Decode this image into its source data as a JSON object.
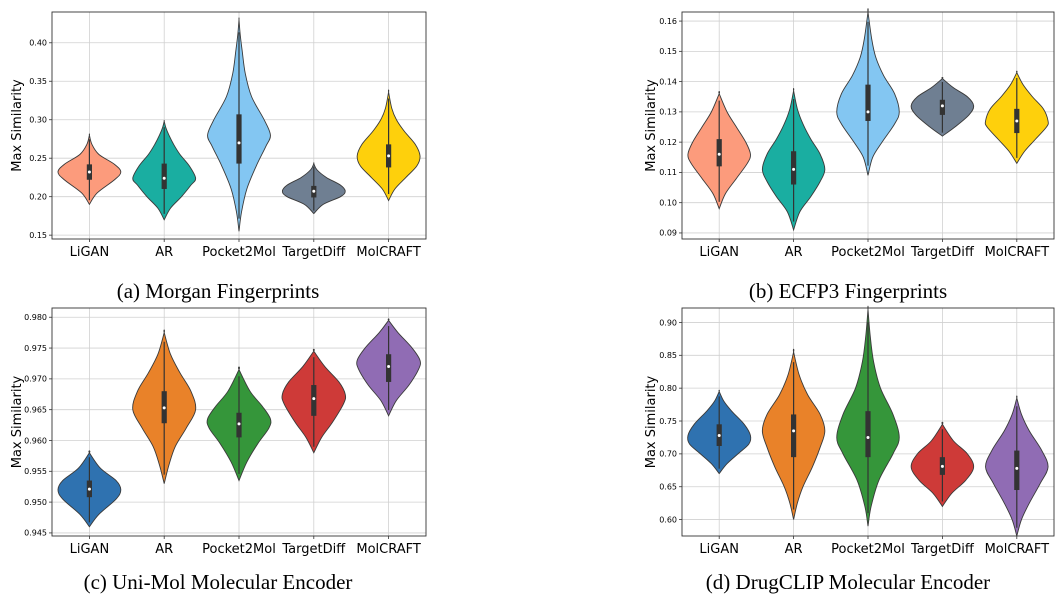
{
  "chart_data": [
    {
      "type": "violin",
      "caption": "(a) Morgan Fingerprints",
      "ylabel": "Max Similarity",
      "ylim": [
        0.145,
        0.44
      ],
      "yticks": [
        0.15,
        0.2,
        0.25,
        0.3,
        0.35,
        0.4
      ],
      "ytick_labels": [
        "0.15",
        "0.20",
        "0.25",
        "0.30",
        "0.35",
        "0.40"
      ],
      "grid": true,
      "categories": [
        "LiGAN",
        "AR",
        "Pocket2Mol",
        "TargetDiff",
        "MolCRAFT"
      ],
      "colors": [
        "#fc9b7c",
        "#1aaea1",
        "#83c6f2",
        "#6f7f92",
        "#fed00c"
      ],
      "series": [
        {
          "min": 0.19,
          "max": 0.28,
          "q1": 0.222,
          "median": 0.232,
          "q3": 0.242,
          "spread": [
            [
              0.19,
              0.0
            ],
            [
              0.205,
              0.25
            ],
            [
              0.222,
              0.8
            ],
            [
              0.232,
              1.0
            ],
            [
              0.242,
              0.8
            ],
            [
              0.255,
              0.3
            ],
            [
              0.268,
              0.08
            ],
            [
              0.28,
              0.0
            ]
          ]
        },
        {
          "min": 0.17,
          "max": 0.298,
          "q1": 0.21,
          "median": 0.224,
          "q3": 0.243,
          "spread": [
            [
              0.17,
              0.0
            ],
            [
              0.185,
              0.2
            ],
            [
              0.2,
              0.55
            ],
            [
              0.215,
              0.85
            ],
            [
              0.224,
              1.0
            ],
            [
              0.24,
              0.8
            ],
            [
              0.255,
              0.5
            ],
            [
              0.268,
              0.3
            ],
            [
              0.28,
              0.15
            ],
            [
              0.29,
              0.05
            ],
            [
              0.298,
              0.0
            ]
          ]
        },
        {
          "min": 0.155,
          "max": 0.43,
          "q1": 0.243,
          "median": 0.27,
          "q3": 0.307,
          "spread": [
            [
              0.155,
              0.0
            ],
            [
              0.18,
              0.08
            ],
            [
              0.21,
              0.25
            ],
            [
              0.24,
              0.55
            ],
            [
              0.265,
              0.85
            ],
            [
              0.28,
              1.0
            ],
            [
              0.3,
              0.8
            ],
            [
              0.33,
              0.4
            ],
            [
              0.36,
              0.2
            ],
            [
              0.39,
              0.1
            ],
            [
              0.41,
              0.04
            ],
            [
              0.43,
              0.0
            ]
          ]
        },
        {
          "min": 0.178,
          "max": 0.243,
          "q1": 0.199,
          "median": 0.207,
          "q3": 0.214,
          "spread": [
            [
              0.178,
              0.0
            ],
            [
              0.19,
              0.3
            ],
            [
              0.2,
              0.85
            ],
            [
              0.207,
              1.0
            ],
            [
              0.215,
              0.85
            ],
            [
              0.225,
              0.4
            ],
            [
              0.235,
              0.1
            ],
            [
              0.243,
              0.0
            ]
          ]
        },
        {
          "min": 0.195,
          "max": 0.336,
          "q1": 0.238,
          "median": 0.253,
          "q3": 0.268,
          "spread": [
            [
              0.195,
              0.0
            ],
            [
              0.21,
              0.2
            ],
            [
              0.225,
              0.55
            ],
            [
              0.24,
              0.9
            ],
            [
              0.253,
              1.0
            ],
            [
              0.268,
              0.85
            ],
            [
              0.285,
              0.5
            ],
            [
              0.3,
              0.25
            ],
            [
              0.315,
              0.1
            ],
            [
              0.336,
              0.0
            ]
          ]
        }
      ]
    },
    {
      "type": "violin",
      "caption": "(b) ECFP3 Fingerprints",
      "ylabel": "Max Similarity",
      "ylim": [
        0.088,
        0.163
      ],
      "yticks": [
        0.09,
        0.1,
        0.11,
        0.12,
        0.13,
        0.14,
        0.15,
        0.16
      ],
      "ytick_labels": [
        "0.09",
        "0.10",
        "0.11",
        "0.12",
        "0.13",
        "0.14",
        "0.15",
        "0.16"
      ],
      "grid": true,
      "categories": [
        "LiGAN",
        "AR",
        "Pocket2Mol",
        "TargetDiff",
        "MolCRAFT"
      ],
      "colors": [
        "#fc9b7c",
        "#1aaea1",
        "#83c6f2",
        "#6f7f92",
        "#fed00c"
      ],
      "series": [
        {
          "min": 0.098,
          "max": 0.136,
          "q1": 0.112,
          "median": 0.116,
          "q3": 0.121,
          "spread": [
            [
              0.098,
              0.0
            ],
            [
              0.103,
              0.2
            ],
            [
              0.108,
              0.55
            ],
            [
              0.113,
              0.9
            ],
            [
              0.116,
              1.0
            ],
            [
              0.12,
              0.85
            ],
            [
              0.125,
              0.55
            ],
            [
              0.13,
              0.25
            ],
            [
              0.136,
              0.0
            ]
          ]
        },
        {
          "min": 0.091,
          "max": 0.137,
          "q1": 0.106,
          "median": 0.111,
          "q3": 0.117,
          "spread": [
            [
              0.091,
              0.0
            ],
            [
              0.097,
              0.2
            ],
            [
              0.102,
              0.55
            ],
            [
              0.107,
              0.85
            ],
            [
              0.111,
              1.0
            ],
            [
              0.116,
              0.85
            ],
            [
              0.121,
              0.55
            ],
            [
              0.126,
              0.3
            ],
            [
              0.131,
              0.12
            ],
            [
              0.137,
              0.0
            ]
          ]
        },
        {
          "min": 0.109,
          "max": 0.163,
          "q1": 0.127,
          "median": 0.13,
          "q3": 0.139,
          "spread": [
            [
              0.109,
              0.0
            ],
            [
              0.115,
              0.15
            ],
            [
              0.12,
              0.45
            ],
            [
              0.126,
              0.85
            ],
            [
              0.13,
              1.0
            ],
            [
              0.136,
              0.85
            ],
            [
              0.142,
              0.5
            ],
            [
              0.148,
              0.25
            ],
            [
              0.154,
              0.12
            ],
            [
              0.163,
              0.0
            ]
          ]
        },
        {
          "min": 0.122,
          "max": 0.141,
          "q1": 0.129,
          "median": 0.132,
          "q3": 0.134,
          "spread": [
            [
              0.122,
              0.0
            ],
            [
              0.125,
              0.4
            ],
            [
              0.129,
              0.85
            ],
            [
              0.132,
              1.0
            ],
            [
              0.135,
              0.8
            ],
            [
              0.138,
              0.35
            ],
            [
              0.141,
              0.0
            ]
          ]
        },
        {
          "min": 0.113,
          "max": 0.143,
          "q1": 0.123,
          "median": 0.127,
          "q3": 0.131,
          "spread": [
            [
              0.113,
              0.0
            ],
            [
              0.117,
              0.25
            ],
            [
              0.121,
              0.6
            ],
            [
              0.125,
              0.95
            ],
            [
              0.127,
              1.0
            ],
            [
              0.131,
              0.85
            ],
            [
              0.135,
              0.5
            ],
            [
              0.139,
              0.2
            ],
            [
              0.143,
              0.0
            ]
          ]
        }
      ]
    },
    {
      "type": "violin",
      "caption": "(c) Uni-Mol Molecular Encoder",
      "ylabel": "Max Similarity",
      "ylim": [
        0.9445,
        0.9815
      ],
      "yticks": [
        0.945,
        0.95,
        0.955,
        0.96,
        0.965,
        0.97,
        0.975,
        0.98
      ],
      "ytick_labels": [
        "0.945",
        "0.950",
        "0.955",
        "0.960",
        "0.965",
        "0.970",
        "0.975",
        "0.980"
      ],
      "grid": true,
      "categories": [
        "LiGAN",
        "AR",
        "Pocket2Mol",
        "TargetDiff",
        "MolCRAFT"
      ],
      "colors": [
        "#2f72b0",
        "#e98229",
        "#35963a",
        "#ce3a38",
        "#906cb4"
      ],
      "series": [
        {
          "min": 0.946,
          "max": 0.958,
          "q1": 0.9508,
          "median": 0.9521,
          "q3": 0.9535,
          "spread": [
            [
              0.946,
              0.0
            ],
            [
              0.948,
              0.3
            ],
            [
              0.9505,
              0.85
            ],
            [
              0.952,
              1.0
            ],
            [
              0.9535,
              0.85
            ],
            [
              0.9555,
              0.35
            ],
            [
              0.958,
              0.0
            ]
          ]
        },
        {
          "min": 0.953,
          "max": 0.9775,
          "q1": 0.9628,
          "median": 0.9653,
          "q3": 0.968,
          "spread": [
            [
              0.953,
              0.0
            ],
            [
              0.956,
              0.15
            ],
            [
              0.959,
              0.35
            ],
            [
              0.962,
              0.7
            ],
            [
              0.965,
              1.0
            ],
            [
              0.968,
              0.85
            ],
            [
              0.971,
              0.5
            ],
            [
              0.974,
              0.2
            ],
            [
              0.9775,
              0.0
            ]
          ]
        },
        {
          "min": 0.9535,
          "max": 0.9715,
          "q1": 0.9605,
          "median": 0.9627,
          "q3": 0.9645,
          "spread": [
            [
              0.9535,
              0.0
            ],
            [
              0.9565,
              0.25
            ],
            [
              0.9595,
              0.6
            ],
            [
              0.962,
              0.95
            ],
            [
              0.9635,
              1.0
            ],
            [
              0.9655,
              0.75
            ],
            [
              0.968,
              0.35
            ],
            [
              0.9715,
              0.0
            ]
          ]
        },
        {
          "min": 0.958,
          "max": 0.9745,
          "q1": 0.964,
          "median": 0.9668,
          "q3": 0.969,
          "spread": [
            [
              0.958,
              0.0
            ],
            [
              0.9605,
              0.25
            ],
            [
              0.963,
              0.6
            ],
            [
              0.966,
              0.95
            ],
            [
              0.9675,
              1.0
            ],
            [
              0.9695,
              0.8
            ],
            [
              0.972,
              0.35
            ],
            [
              0.9745,
              0.0
            ]
          ]
        },
        {
          "min": 0.964,
          "max": 0.9795,
          "q1": 0.9695,
          "median": 0.972,
          "q3": 0.974,
          "spread": [
            [
              0.964,
              0.0
            ],
            [
              0.9665,
              0.25
            ],
            [
              0.969,
              0.65
            ],
            [
              0.9715,
              0.95
            ],
            [
              0.973,
              1.0
            ],
            [
              0.975,
              0.75
            ],
            [
              0.9775,
              0.3
            ],
            [
              0.9795,
              0.0
            ]
          ]
        }
      ]
    },
    {
      "type": "violin",
      "caption": "(d) DrugCLIP Molecular Encoder",
      "ylabel": "Max Similarity",
      "ylim": [
        0.575,
        0.922
      ],
      "yticks": [
        0.6,
        0.65,
        0.7,
        0.75,
        0.8,
        0.85,
        0.9
      ],
      "ytick_labels": [
        "0.60",
        "0.65",
        "0.70",
        "0.75",
        "0.80",
        "0.85",
        "0.90"
      ],
      "grid": true,
      "categories": [
        "LiGAN",
        "AR",
        "Pocket2Mol",
        "TargetDiff",
        "MolCRAFT"
      ],
      "colors": [
        "#2f72b0",
        "#e98229",
        "#35963a",
        "#ce3a38",
        "#906cb4"
      ],
      "series": [
        {
          "min": 0.67,
          "max": 0.795,
          "q1": 0.712,
          "median": 0.728,
          "q3": 0.745,
          "spread": [
            [
              0.67,
              0.0
            ],
            [
              0.685,
              0.25
            ],
            [
              0.7,
              0.6
            ],
            [
              0.715,
              0.95
            ],
            [
              0.728,
              1.0
            ],
            [
              0.745,
              0.8
            ],
            [
              0.765,
              0.4
            ],
            [
              0.78,
              0.15
            ],
            [
              0.795,
              0.0
            ]
          ]
        },
        {
          "min": 0.6,
          "max": 0.855,
          "q1": 0.695,
          "median": 0.735,
          "q3": 0.76,
          "spread": [
            [
              0.6,
              0.0
            ],
            [
              0.625,
              0.12
            ],
            [
              0.65,
              0.3
            ],
            [
              0.68,
              0.6
            ],
            [
              0.71,
              0.85
            ],
            [
              0.735,
              1.0
            ],
            [
              0.76,
              0.85
            ],
            [
              0.79,
              0.45
            ],
            [
              0.82,
              0.18
            ],
            [
              0.855,
              0.0
            ]
          ]
        },
        {
          "min": 0.59,
          "max": 0.92,
          "q1": 0.695,
          "median": 0.725,
          "q3": 0.765,
          "spread": [
            [
              0.59,
              0.0
            ],
            [
              0.62,
              0.1
            ],
            [
              0.66,
              0.35
            ],
            [
              0.7,
              0.8
            ],
            [
              0.725,
              1.0
            ],
            [
              0.76,
              0.8
            ],
            [
              0.8,
              0.4
            ],
            [
              0.84,
              0.18
            ],
            [
              0.88,
              0.07
            ],
            [
              0.92,
              0.0
            ]
          ]
        },
        {
          "min": 0.62,
          "max": 0.745,
          "q1": 0.668,
          "median": 0.681,
          "q3": 0.695,
          "spread": [
            [
              0.62,
              0.0
            ],
            [
              0.64,
              0.3
            ],
            [
              0.66,
              0.75
            ],
            [
              0.68,
              1.0
            ],
            [
              0.7,
              0.8
            ],
            [
              0.72,
              0.35
            ],
            [
              0.745,
              0.0
            ]
          ]
        },
        {
          "min": 0.575,
          "max": 0.785,
          "q1": 0.645,
          "median": 0.678,
          "q3": 0.705,
          "spread": [
            [
              0.575,
              0.0
            ],
            [
              0.6,
              0.15
            ],
            [
              0.625,
              0.4
            ],
            [
              0.655,
              0.75
            ],
            [
              0.68,
              1.0
            ],
            [
              0.705,
              0.8
            ],
            [
              0.735,
              0.4
            ],
            [
              0.76,
              0.15
            ],
            [
              0.785,
              0.0
            ]
          ]
        }
      ]
    }
  ]
}
